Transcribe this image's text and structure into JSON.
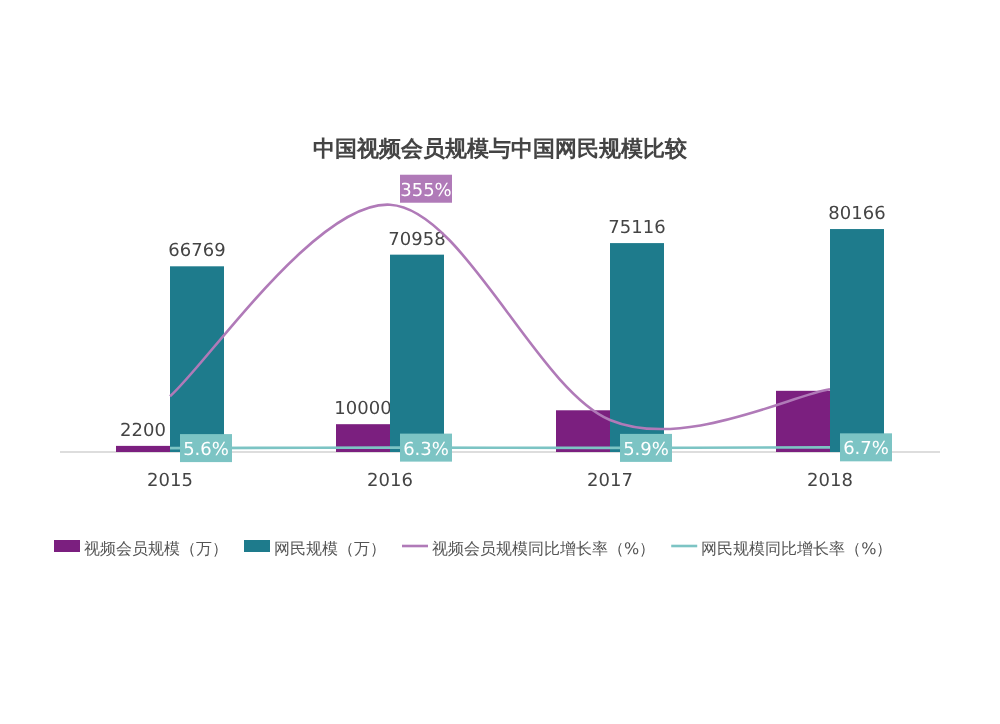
{
  "chart_data": {
    "type": "bar",
    "title": "中国视频会员规模与中国网民规模比较",
    "categories": [
      "2015",
      "2016",
      "2017",
      "2018"
    ],
    "series": [
      {
        "name": "视频会员规模（万）",
        "color": "#7b1f7f",
        "values": [
          2200,
          10000,
          15000,
          22000
        ],
        "value_labels": [
          "2200",
          "10000",
          null,
          null
        ]
      },
      {
        "name": "网民规模（万）",
        "color": "#1e7b8c",
        "values": [
          66769,
          70958,
          75116,
          80166
        ],
        "value_labels": [
          "66769",
          "70958",
          "75116",
          "80166"
        ]
      },
      {
        "name": "视频会员规模同比增长率（%）",
        "type": "line",
        "axis": "y2",
        "color": "#b07ab8",
        "values": [
          80,
          355,
          46,
          90
        ],
        "value_labels": [
          null,
          "355%",
          null,
          null
        ]
      },
      {
        "name": "网民规模同比增长率（%）",
        "type": "line",
        "axis": "y2",
        "color": "#7cc4c4",
        "values": [
          5.6,
          6.3,
          5.9,
          6.7
        ],
        "value_labels": [
          "5.6%",
          "6.3%",
          "5.9%",
          "6.7%"
        ]
      }
    ],
    "legend": "bottom",
    "grid": false
  }
}
